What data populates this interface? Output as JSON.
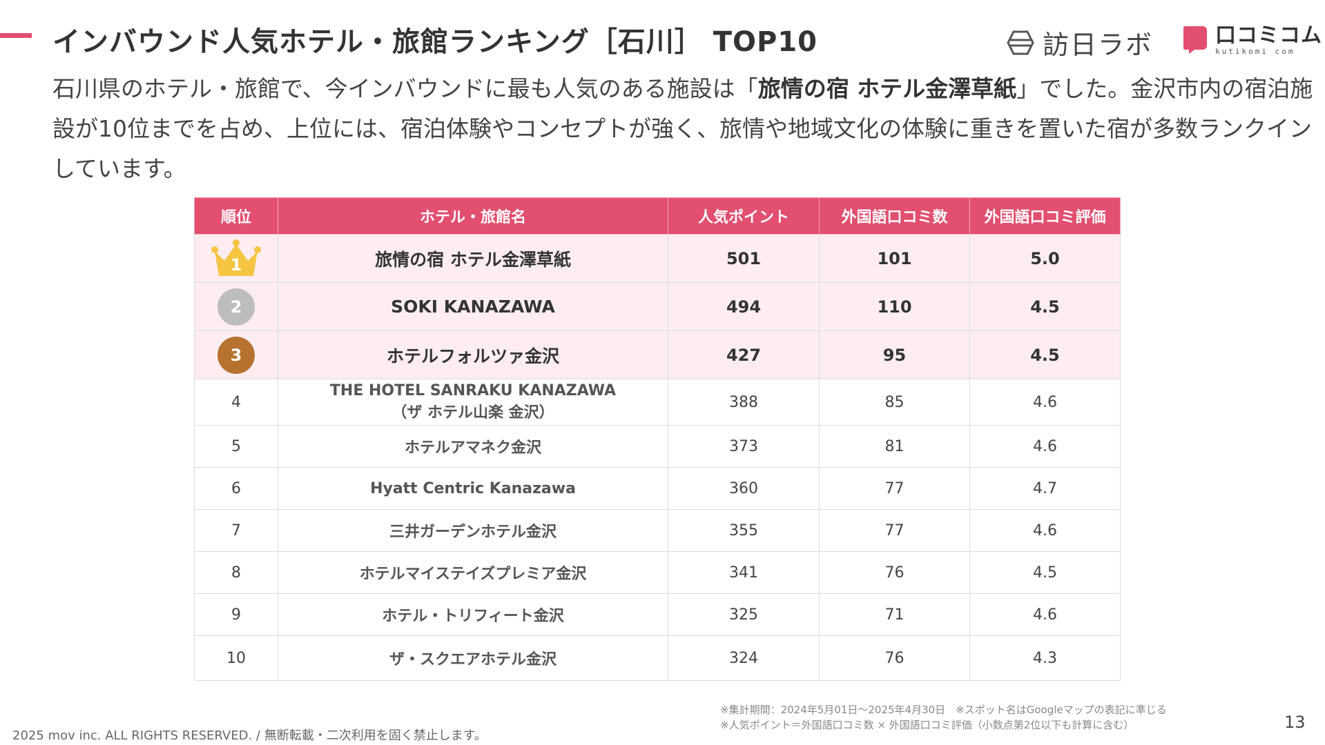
{
  "slide": {
    "title": "インバウンド人気ホテル・旅館ランキング［石川］ TOP10",
    "page_number": "13",
    "copyright": "2025 mov inc. ALL RIGHTS RESERVED. / 無断転載・二次利用を固く禁止します。",
    "accent_color": "#e24f70"
  },
  "logos": {
    "houichi": {
      "text": "訪日ラボ",
      "icon": "houichi-hexagon-icon"
    },
    "kutikomi": {
      "text": "口コミコム",
      "sub": "kutikomi com",
      "icon": "kutikomi-speech-icon"
    }
  },
  "lead": {
    "before": "石川県のホテル・旅館で、今インバウンドに最も人気のある施設は「",
    "highlight": "旅情の宿 ホテル金澤草紙",
    "after": "」でした。金沢市内の宿泊施設が10位までを占め、上位には、宿泊体験やコンセプトが強く、旅情や地域文化の体験に重きを置いた宿が多数ランクインしています。"
  },
  "table": {
    "headers": [
      "順位",
      "ホテル・旅館名",
      "人気ポイント",
      "外国語口コミ数",
      "外国語口コミ評価"
    ],
    "rows": [
      {
        "rank": "1",
        "name": "旅情の宿 ホテル金澤草紙",
        "points": "501",
        "reviews": "101",
        "rating": "5.0"
      },
      {
        "rank": "2",
        "name": "SOKI KANAZAWA",
        "points": "494",
        "reviews": "110",
        "rating": "4.5"
      },
      {
        "rank": "3",
        "name": "ホテルフォルツァ金沢",
        "points": "427",
        "reviews": "95",
        "rating": "4.5"
      },
      {
        "rank": "4",
        "name": "THE HOTEL SANRAKU KANAZAWA",
        "name_sub": "（ザ ホテル山楽 金沢）",
        "points": "388",
        "reviews": "85",
        "rating": "4.6"
      },
      {
        "rank": "5",
        "name": "ホテルアマネク金沢",
        "points": "373",
        "reviews": "81",
        "rating": "4.6"
      },
      {
        "rank": "6",
        "name": "Hyatt Centric Kanazawa",
        "points": "360",
        "reviews": "77",
        "rating": "4.7"
      },
      {
        "rank": "7",
        "name": "三井ガーデンホテル金沢",
        "points": "355",
        "reviews": "77",
        "rating": "4.6"
      },
      {
        "rank": "8",
        "name": "ホテルマイステイズプレミア金沢",
        "points": "341",
        "reviews": "76",
        "rating": "4.5"
      },
      {
        "rank": "9",
        "name": "ホテル・トリフィート金沢",
        "points": "325",
        "reviews": "71",
        "rating": "4.6"
      },
      {
        "rank": "10",
        "name": "ザ・スクエアホテル金沢",
        "points": "324",
        "reviews": "76",
        "rating": "4.3"
      }
    ],
    "medal_colors": {
      "gold": "#f5c542",
      "silver": "#bdbdbd",
      "bronze": "#b8722f"
    }
  },
  "notes": {
    "line1": "※集計期間：2024年5月01日〜2025年4月30日　※スポット名はGoogleマップの表記に準じる",
    "line2": "※人気ポイント＝外国語口コミ数 × 外国語口コミ評価（小数点第2位以下も計算に含む）"
  }
}
